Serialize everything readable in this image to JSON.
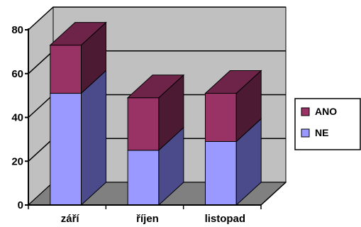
{
  "chart_data": {
    "type": "bar",
    "stacked": true,
    "three_d": true,
    "categories": [
      "září",
      "říjen",
      "listopad"
    ],
    "series": [
      {
        "name": "NE",
        "values": [
          51,
          25,
          29
        ],
        "color": "#9999ff",
        "side_color": "#4b4b8c",
        "top_color": "#6e6ec0"
      },
      {
        "name": "ANO",
        "values": [
          22,
          24,
          22
        ],
        "color": "#993366",
        "side_color": "#4d1a33",
        "top_color": "#6e2449"
      }
    ],
    "title": "",
    "xlabel": "",
    "ylabel": "",
    "ylim": [
      0,
      80
    ],
    "yticks": [
      "0",
      "20",
      "40",
      "60",
      "80"
    ],
    "grid": true,
    "legend": {
      "position": "right",
      "order": [
        "ANO",
        "NE"
      ]
    }
  }
}
